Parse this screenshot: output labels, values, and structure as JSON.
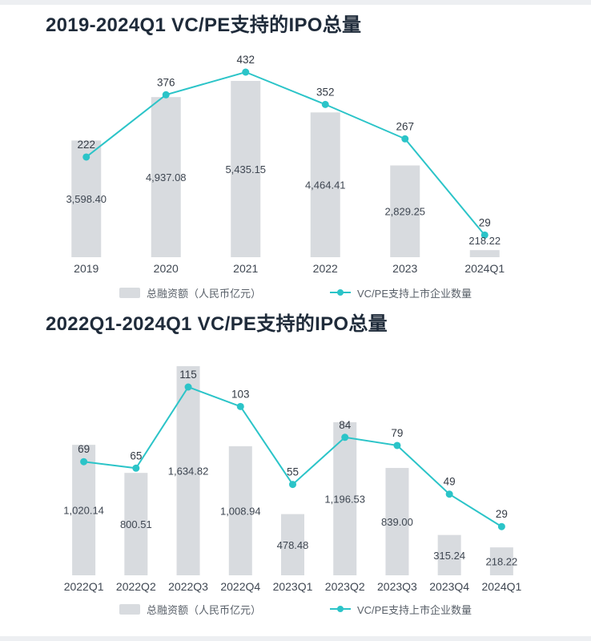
{
  "colors": {
    "background": "#ffffff",
    "edge_strip": "#edeff2",
    "title": "#1f2b3a",
    "bar": "#d8dbdf",
    "line": "#2bc4c8",
    "bar_value_label": "#3e4651",
    "line_value_label": "#343b45",
    "axis_label": "#3f4752",
    "legend_text": "#596069"
  },
  "legend": {
    "bar_label": "总融资额（人民币亿元）",
    "line_label": "VC/PE支持上市企业数量"
  },
  "chart_data": [
    {
      "type": "bar+line",
      "title": "2019-2024Q1 VC/PE支持的IPO总量",
      "categories": [
        "2019",
        "2020",
        "2021",
        "2022",
        "2023",
        "2024Q1"
      ],
      "series": [
        {
          "name": "总融资额（人民币亿元）",
          "kind": "bar",
          "values": [
            3598.4,
            4937.08,
            5435.15,
            4464.41,
            2829.25,
            218.22
          ],
          "value_labels": [
            "3,598.40",
            "4,937.08",
            "5,435.15",
            "4,464.41",
            "2,829.25",
            "218.22"
          ]
        },
        {
          "name": "VC/PE支持上市企业数量",
          "kind": "line",
          "values": [
            222,
            376,
            432,
            352,
            267,
            29
          ],
          "value_labels": [
            "222",
            "376",
            "432",
            "352",
            "267",
            "29"
          ]
        }
      ],
      "legend_position": "bottom",
      "grid": false
    },
    {
      "type": "bar+line",
      "title": "2022Q1-2024Q1 VC/PE支持的IPO总量",
      "categories": [
        "2022Q1",
        "2022Q2",
        "2022Q3",
        "2022Q4",
        "2023Q1",
        "2023Q2",
        "2023Q3",
        "2023Q4",
        "2024Q1"
      ],
      "series": [
        {
          "name": "总融资额（人民币亿元）",
          "kind": "bar",
          "values": [
            1020.14,
            800.51,
            1634.82,
            1008.94,
            478.48,
            1196.53,
            839.0,
            315.24,
            218.22
          ],
          "value_labels": [
            "1,020.14",
            "800.51",
            "1,634.82",
            "1,008.94",
            "478.48",
            "1,196.53",
            "839.00",
            "315.24",
            "218.22"
          ]
        },
        {
          "name": "VC/PE支持上市企业数量",
          "kind": "line",
          "values": [
            69,
            65,
            115,
            103,
            55,
            84,
            79,
            49,
            29
          ],
          "value_labels": [
            "69",
            "65",
            "115",
            "103",
            "55",
            "84",
            "79",
            "49",
            "29"
          ]
        }
      ],
      "legend_position": "bottom",
      "grid": false
    }
  ]
}
